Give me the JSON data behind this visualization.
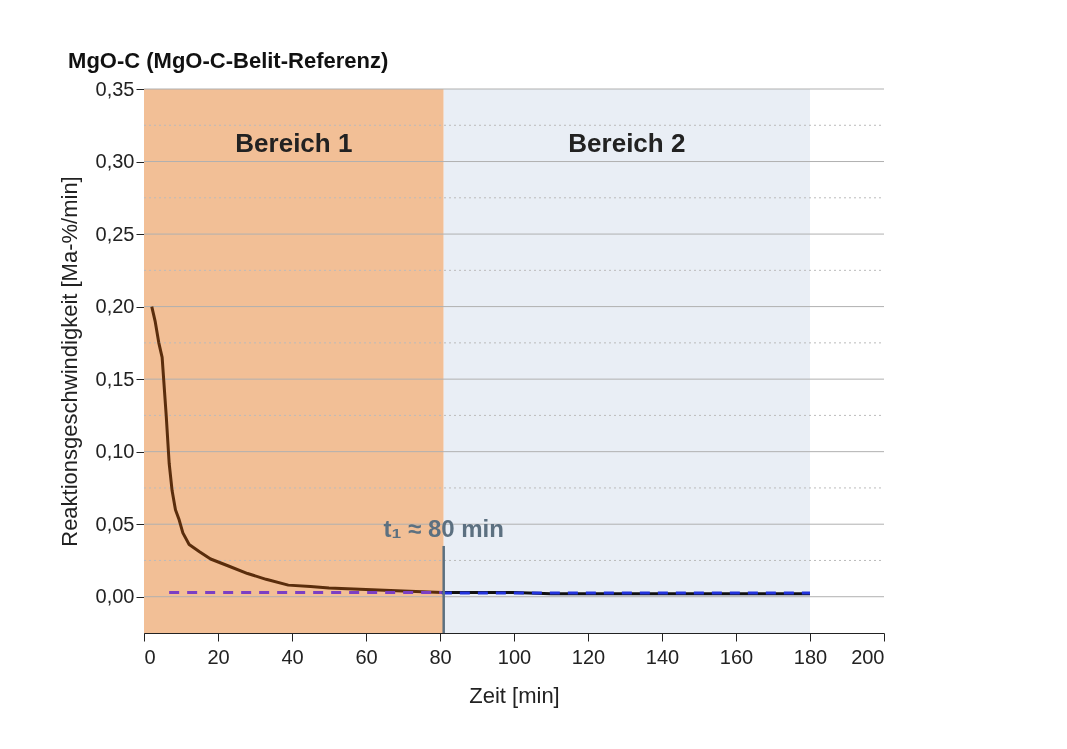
{
  "chart_data": {
    "type": "line",
    "title": "MgO-C (MgO-C-Belit-Referenz)",
    "xlabel": "Zeit [min]",
    "ylabel": "Reaktionsgeschwindigkeit [Ma-%/min]",
    "xlim": [
      0,
      200
    ],
    "xticks": [
      0,
      20,
      40,
      60,
      80,
      100,
      120,
      140,
      160,
      180,
      200
    ],
    "ylim": [
      -0.025,
      0.35
    ],
    "yticks": [
      {
        "value": 0,
        "label": "0,00"
      },
      {
        "value": 0.025,
        "label": null
      },
      {
        "value": 0.05,
        "label": "0,05"
      },
      {
        "value": 0.075,
        "label": null
      },
      {
        "value": 0.1,
        "label": "0,10"
      },
      {
        "value": 0.125,
        "label": null
      },
      {
        "value": 0.15,
        "label": "0,15"
      },
      {
        "value": 0.175,
        "label": null
      },
      {
        "value": 0.2,
        "label": "0,20"
      },
      {
        "value": 0.225,
        "label": null
      },
      {
        "value": 0.25,
        "label": "0,25"
      },
      {
        "value": 0.275,
        "label": null
      },
      {
        "value": 0.3,
        "label": "0,30"
      },
      {
        "value": 0.325,
        "label": null
      },
      {
        "value": 0.35,
        "label": "0,35"
      }
    ],
    "grid": "y",
    "series": [
      {
        "color": "#5a2d0c",
        "x": [
          2.1,
          3,
          4,
          4.9,
          6,
          6.8,
          7.6,
          8.5,
          9.5,
          10.5,
          12.2,
          15,
          18,
          23,
          28,
          33,
          39,
          45,
          50,
          60,
          70,
          80.5
        ],
        "values": [
          0.2,
          0.19,
          0.175,
          0.165,
          0.125,
          0.092,
          0.073,
          0.06,
          0.053,
          0.044,
          0.036,
          0.031,
          0.026,
          0.021,
          0.016,
          0.012,
          0.008,
          0.007,
          0.006,
          0.005,
          0.004,
          0.003
        ]
      },
      {
        "color": "#111111",
        "x": [
          80.5,
          90,
          100,
          110,
          120,
          130,
          140,
          150,
          160,
          170,
          180
        ],
        "values": [
          0.003,
          0.003,
          0.003,
          0.002,
          0.002,
          0.002,
          0.002,
          0.002,
          0.002,
          0.002,
          0.002
        ]
      },
      {
        "color": "#7b3fc4",
        "line_style": "dashed",
        "x": [
          6.8,
          80.5
        ],
        "values": [
          0.003,
          0.003
        ]
      },
      {
        "color": "#2233dd",
        "line_style": "dashed",
        "x": [
          80.5,
          180
        ],
        "values": [
          0.0025,
          0.0025
        ]
      }
    ],
    "bands": [
      {
        "axis": "x",
        "from": 0,
        "to": 81,
        "label": "Bereich 1",
        "color": "#f2bf96"
      },
      {
        "axis": "x",
        "from": 81,
        "to": 180,
        "label": "Bereich 2",
        "color": "#e9eef5"
      }
    ],
    "ref_lines": [
      {
        "axis": "x",
        "value": 81,
        "label": "t₁ ≈ 80 min",
        "color": "#5c7080"
      }
    ]
  }
}
